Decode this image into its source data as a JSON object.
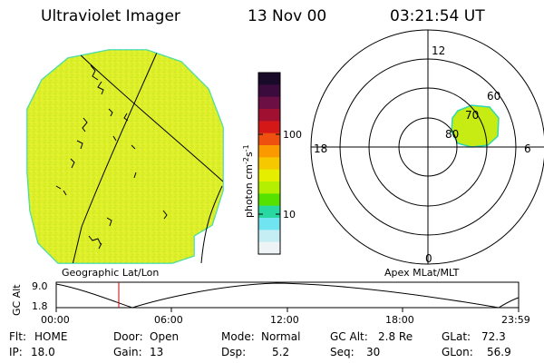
{
  "header": {
    "title": "Ultraviolet Imager",
    "date": "13 Nov 00",
    "time": "03:21:54 UT"
  },
  "colorbar": {
    "unit": "photon cm",
    "unit_sup1": "-2",
    "unit_mid": "s",
    "unit_sup2": "-1",
    "tick_high": "100",
    "tick_low": "10",
    "colors": [
      "#1a0a2a",
      "#3a0b3c",
      "#6b0f45",
      "#a01030",
      "#d41818",
      "#ee5010",
      "#fa9a00",
      "#f6c800",
      "#e6ee00",
      "#b4ee00",
      "#55e200",
      "#28d8a0",
      "#70e4f0",
      "#c4eef4",
      "#eef4f6"
    ]
  },
  "geo_panel": {
    "label": "Geographic Lat/Lon",
    "fill_color": "#dff02a"
  },
  "apex_panel": {
    "label": "Apex MLat/MLT",
    "mlt_12": "12",
    "mlt_18": "18",
    "mlt_6": "6",
    "mlt_0": "0",
    "lat_60": "60",
    "lat_70": "70",
    "lat_80": "80",
    "blob_color": "#c6ec14"
  },
  "altitude_plot": {
    "ylabel": "GC Alt",
    "y_top": "9.0",
    "y_bottom": "1.8",
    "x_ticks": [
      "00:00",
      "06:00",
      "12:00",
      "18:00",
      "23:59"
    ],
    "marker_color": "#cc0000"
  },
  "info": {
    "flt_label": "Flt:",
    "flt_value": "HOME",
    "ip_label": "IP:",
    "ip_value": "18.0",
    "door_label": "Door:",
    "door_value": "Open",
    "gain_label": "Gain:",
    "gain_value": "13",
    "mode_label": "Mode:",
    "mode_value": "Normal",
    "dsp_label": "Dsp:",
    "dsp_value": "5.2",
    "gcalt_label": "GC Alt:",
    "gcalt_value": "2.8 Re",
    "seq_label": "Seq:",
    "seq_value": "30",
    "glat_label": "GLat:",
    "glat_value": "72.3",
    "glon_label": "GLon:",
    "glon_value": "56.9"
  }
}
